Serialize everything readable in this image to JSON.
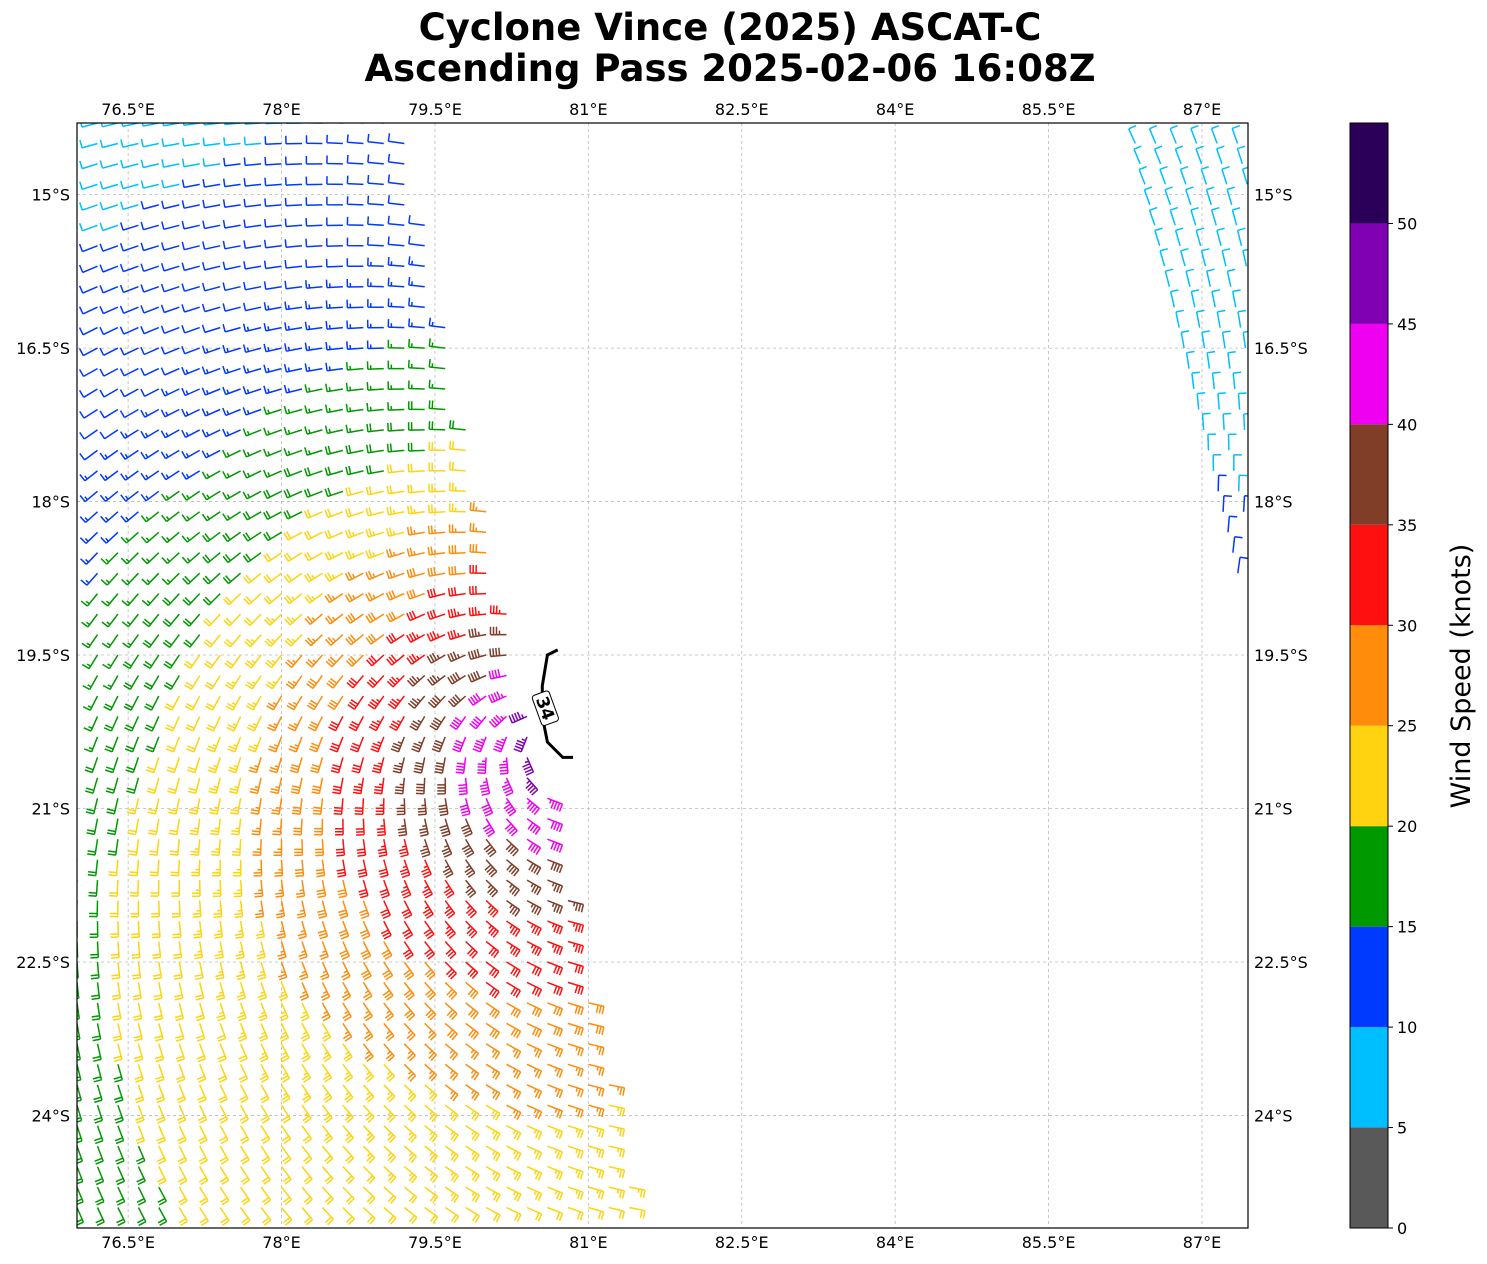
{
  "title": {
    "line1": "Cyclone Vince (2025) ASCAT-C",
    "line2": "Ascending Pass 2025-02-06 16:08Z"
  },
  "map": {
    "lon_range": [
      76.0,
      87.45
    ],
    "lat_range": [
      -25.1,
      -14.3
    ],
    "lon_ticks": [
      76.5,
      78,
      79.5,
      81,
      82.5,
      84,
      85.5,
      87
    ],
    "lon_tick_labels": [
      "76.5°E",
      "78°E",
      "79.5°E",
      "81°E",
      "82.5°E",
      "84°E",
      "85.5°E",
      "87°E"
    ],
    "lat_ticks": [
      -15,
      -16.5,
      -18,
      -19.5,
      -21,
      -22.5,
      -24
    ],
    "lat_tick_labels": [
      "15°S",
      "16.5°S",
      "18°S",
      "19.5°S",
      "21°S",
      "22.5°S",
      "24°S"
    ],
    "gridlines": true,
    "storm_center": {
      "lon": 80.6,
      "lat": -20.3
    },
    "contour_34kt": {
      "label": "34",
      "points": [
        [
          80.7,
          -19.45
        ],
        [
          80.6,
          -19.5
        ],
        [
          80.55,
          -19.8
        ],
        [
          80.55,
          -20.1
        ],
        [
          80.6,
          -20.35
        ],
        [
          80.75,
          -20.5
        ],
        [
          80.85,
          -20.5
        ]
      ]
    },
    "swaths": [
      {
        "name": "west",
        "lon_min": 76.0,
        "lon_max_north": 79.2,
        "lon_max_south": 81.5,
        "lat_north": -14.3,
        "lat_south": -25.1
      },
      {
        "name": "east",
        "lon_west_north": 86.3,
        "lon_west_south": 87.35,
        "lat_north": -14.3,
        "lat_south": -18.7
      }
    ]
  },
  "colorbar": {
    "label": "Wind Speed (knots)",
    "ticks": [
      0,
      5,
      10,
      15,
      20,
      25,
      30,
      35,
      40,
      45,
      50
    ],
    "levels": [
      {
        "from": 0,
        "to": 5,
        "color": "#595959"
      },
      {
        "from": 5,
        "to": 10,
        "color": "#00bfff"
      },
      {
        "from": 10,
        "to": 15,
        "color": "#0039ff"
      },
      {
        "from": 15,
        "to": 20,
        "color": "#009900"
      },
      {
        "from": 20,
        "to": 25,
        "color": "#ffd30f"
      },
      {
        "from": 25,
        "to": 30,
        "color": "#ff8c0a"
      },
      {
        "from": 30,
        "to": 35,
        "color": "#ff1010"
      },
      {
        "from": 35,
        "to": 40,
        "color": "#803d28"
      },
      {
        "from": 40,
        "to": 45,
        "color": "#f000f0"
      },
      {
        "from": 45,
        "to": 50,
        "color": "#8000b3"
      },
      {
        "from": 50,
        "to": 55,
        "color": "#2b0059"
      }
    ]
  }
}
